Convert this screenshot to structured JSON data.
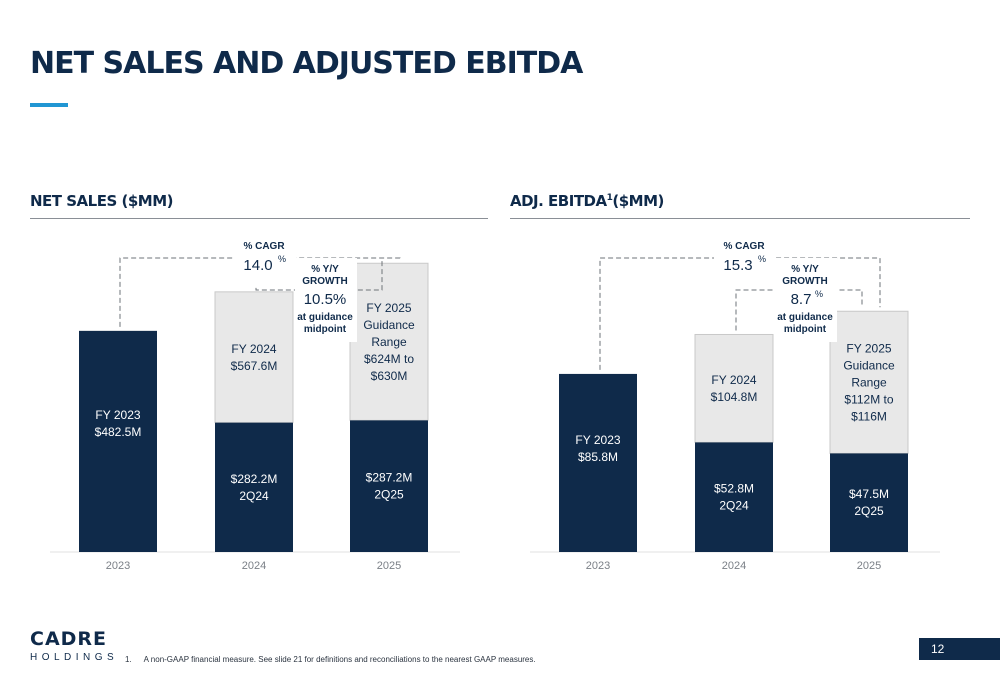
{
  "slide": {
    "title": "NET SALES AND ADJUSTED EBITDA",
    "page_number": "12",
    "logo": {
      "word": "CADRE",
      "sub": "HOLDINGS"
    },
    "footnote": {
      "number": "1.",
      "text": "A non-GAAP financial measure. See slide 21 for definitions and reconciliations to the nearest GAAP measures."
    },
    "colors": {
      "navy": "#0f2a4a",
      "light_bar": "#e8e8e8",
      "accent": "#2196d3"
    }
  },
  "chart_data": [
    {
      "type": "bar",
      "panel_title": "NET SALES ($MM)",
      "categories": [
        "2023",
        "2024",
        "2025"
      ],
      "ylim": [
        0,
        720
      ],
      "bars": [
        {
          "category": "2023",
          "full_value": 482.5,
          "partial_value": null,
          "full_label": [
            "FY 2023",
            "$482.5M"
          ],
          "partial_label": null
        },
        {
          "category": "2024",
          "full_value": 567.6,
          "partial_value": 282.2,
          "full_label": [
            "FY 2024",
            "$567.6M"
          ],
          "partial_label": [
            "$282.2M",
            "2Q24"
          ]
        },
        {
          "category": "2025",
          "full_value": 630,
          "partial_value": 287.2,
          "full_label": [
            "FY 2025",
            "Guidance",
            "Range",
            "$624M to",
            "$630M"
          ],
          "partial_label": [
            "$287.2M",
            "2Q25"
          ]
        }
      ],
      "annotations": {
        "cagr_label": "% CAGR",
        "cagr_value": "14.0",
        "cagr_unit": "%",
        "yoy_label": [
          "% Y/Y",
          "GROWTH"
        ],
        "yoy_value": "10.5%",
        "yoy_unit": "",
        "yoy_note": [
          "at guidance",
          "midpoint"
        ]
      }
    },
    {
      "type": "bar",
      "panel_title": "ADJ. EBITDA",
      "panel_title_sup": "1",
      "panel_title_suffix": "($MM)",
      "categories": [
        "2023",
        "2024",
        "2025"
      ],
      "ylim": [
        0,
        159
      ],
      "bars": [
        {
          "category": "2023",
          "full_value": 85.8,
          "partial_value": null,
          "full_label": [
            "FY 2023",
            "$85.8M"
          ],
          "partial_label": null
        },
        {
          "category": "2024",
          "full_value": 104.8,
          "partial_value": 52.8,
          "full_label": [
            "FY 2024",
            "$104.8M"
          ],
          "partial_label": [
            "$52.8M",
            "2Q24"
          ]
        },
        {
          "category": "2025",
          "full_value": 116,
          "partial_value": 47.5,
          "full_label": [
            "FY 2025",
            "Guidance",
            "Range",
            "$112M to",
            "$116M"
          ],
          "partial_label": [
            "$47.5M",
            "2Q25"
          ]
        }
      ],
      "annotations": {
        "cagr_label": "% CAGR",
        "cagr_value": "15.3",
        "cagr_unit": "%",
        "yoy_label": [
          "% Y/Y",
          "GROWTH"
        ],
        "yoy_value": "8.7",
        "yoy_unit": "%",
        "yoy_note": [
          "at guidance",
          "midpoint"
        ]
      }
    }
  ]
}
